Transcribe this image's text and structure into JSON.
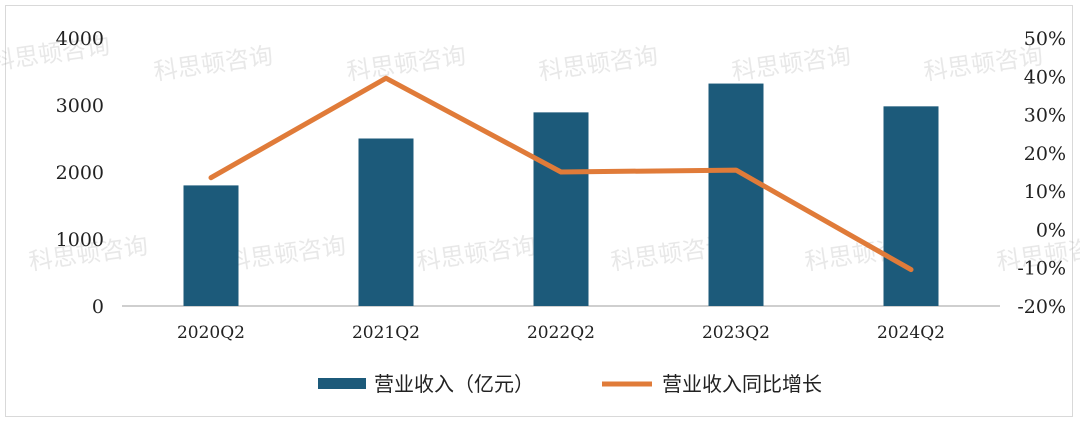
{
  "watermark": "科思顿咨询",
  "colors": {
    "bar": "#1c5a7a",
    "line": "#e07b39",
    "axis": "#bfbfbf"
  },
  "chart_data": {
    "type": "bar",
    "categories": [
      "2020Q2",
      "2021Q2",
      "2022Q2",
      "2023Q2",
      "2024Q2"
    ],
    "series": [
      {
        "name": "营业收入（亿元）",
        "type": "bar",
        "axis": "left",
        "values": [
          1800,
          2500,
          2890,
          3320,
          2980
        ]
      },
      {
        "name": "营业收入同比增长",
        "type": "line",
        "axis": "right",
        "values": [
          13.5,
          39.5,
          15.0,
          15.5,
          -10.5
        ]
      }
    ],
    "y_left": {
      "min": 0,
      "max": 4000,
      "ticks": [
        "0",
        "1000",
        "2000",
        "3000",
        "4000"
      ]
    },
    "y_right": {
      "min": -20,
      "max": 50,
      "ticks": [
        "-20%",
        "-10%",
        "0%",
        "10%",
        "20%",
        "30%",
        "40%",
        "50%"
      ]
    },
    "legend_position": "bottom",
    "grid": false
  }
}
